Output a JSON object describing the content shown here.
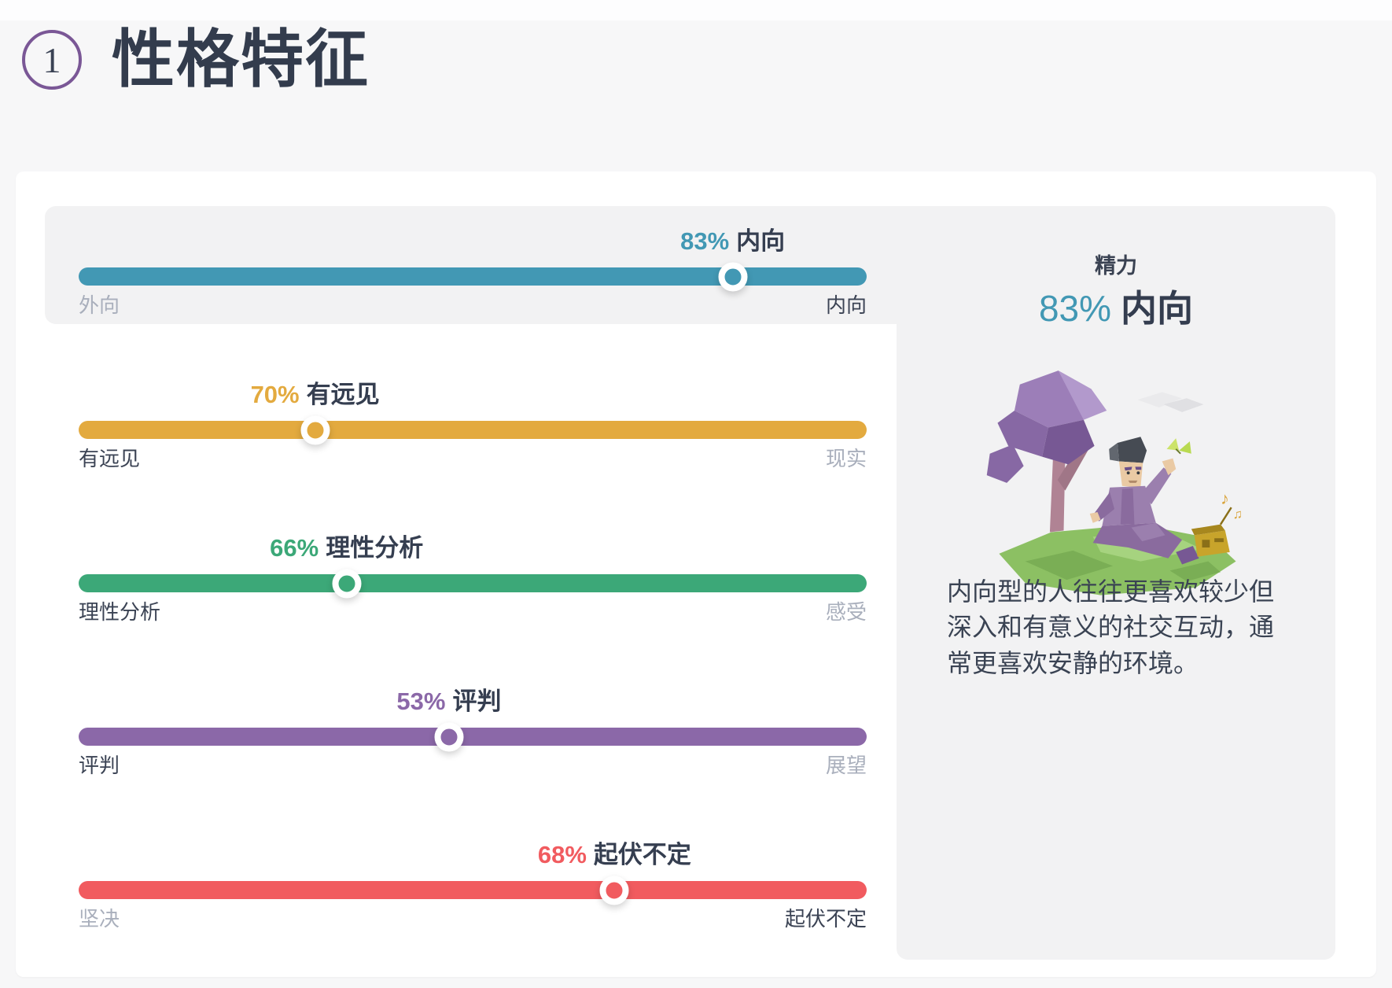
{
  "header": {
    "badge_number": "1",
    "title": "性格特征"
  },
  "sliders": [
    {
      "dimension": "energy",
      "percent": 83,
      "percent_display": "83%",
      "trait_label": "内向",
      "left_label": "外向",
      "right_label": "内向",
      "dominant": "right",
      "knob_pct": 83,
      "bar_color": "#4298B4",
      "highlighted": true
    },
    {
      "dimension": "mind",
      "percent": 70,
      "percent_display": "70%",
      "trait_label": "有远见",
      "left_label": "有远见",
      "right_label": "现实",
      "dominant": "left",
      "knob_pct": 30,
      "bar_color": "#E3AA3F",
      "highlighted": false
    },
    {
      "dimension": "nature",
      "percent": 66,
      "percent_display": "66%",
      "trait_label": "理性分析",
      "left_label": "理性分析",
      "right_label": "感受",
      "dominant": "left",
      "knob_pct": 34,
      "bar_color": "#3CA878",
      "highlighted": false
    },
    {
      "dimension": "tactics",
      "percent": 53,
      "percent_display": "53%",
      "trait_label": "评判",
      "left_label": "评判",
      "right_label": "展望",
      "dominant": "left",
      "knob_pct": 47,
      "bar_color": "#8B68A8",
      "highlighted": false
    },
    {
      "dimension": "identity",
      "percent": 68,
      "percent_display": "68%",
      "trait_label": "起伏不定",
      "left_label": "坚决",
      "right_label": "起伏不定",
      "dominant": "right",
      "knob_pct": 68,
      "bar_color": "#F15B5F",
      "highlighted": false
    }
  ],
  "panel": {
    "category_label": "精力",
    "percent_display": "83%",
    "trait_label": "内向",
    "description": "内向型的人往往更喜欢较少但深入和有意义的社交互动，通常更喜欢安静的环境。",
    "illustration": "introvert-sitting-under-tree-with-radio"
  },
  "colors": {
    "teal": "#4298B4",
    "yellow": "#E3AA3F",
    "green": "#3CA878",
    "purple": "#8B68A8",
    "red": "#F15B5F",
    "badge_ring": "#7A5796",
    "text_dark": "#353E50",
    "text_gray": "#A9AFBC",
    "panel_bg": "#F2F2F3",
    "page_bg": "#F7F7F8",
    "card_bg": "#FFFFFF"
  }
}
